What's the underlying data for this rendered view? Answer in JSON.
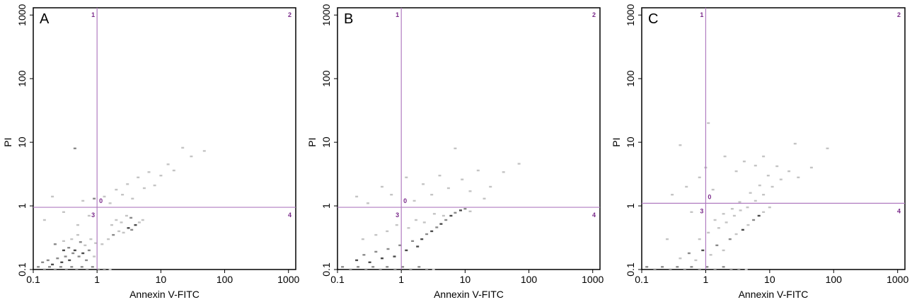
{
  "chart_data": [
    {
      "type": "scatter",
      "panel_label": "A",
      "xlabel": "Annexin V-FITC",
      "ylabel": "PI",
      "xscale": "log",
      "yscale": "log",
      "xlim": [
        0.1,
        1300
      ],
      "ylim": [
        0.1,
        1300
      ],
      "xticks": [
        {
          "value": 0.1,
          "label": "0.1"
        },
        {
          "value": 1,
          "label": "1"
        },
        {
          "value": 10,
          "label": "10"
        },
        {
          "value": 100,
          "label": "100"
        },
        {
          "value": 1000,
          "label": "1000"
        }
      ],
      "yticks": [
        {
          "value": 0.1,
          "label": "0.1"
        },
        {
          "value": 1,
          "label": "1"
        },
        {
          "value": 10,
          "label": "10"
        },
        {
          "value": 100,
          "label": "100"
        },
        {
          "value": 1000,
          "label": "1000"
        }
      ],
      "gate": {
        "x": 1.0,
        "y": 0.95
      },
      "quadrant_labels": [
        "1",
        "2",
        "3",
        "4"
      ],
      "gate_marker": "0",
      "gate_color": "#b07cc0",
      "label_color": "#7a2a8a",
      "point_colors": [
        "#4a4a4a",
        "#8a8a8a",
        "#c4c4c4"
      ],
      "grid": false,
      "legend": "none",
      "points": [
        [
          0.12,
          0.11,
          1
        ],
        [
          0.15,
          0.1,
          1
        ],
        [
          0.18,
          0.11,
          1
        ],
        [
          0.22,
          0.1,
          1
        ],
        [
          0.27,
          0.11,
          1
        ],
        [
          0.33,
          0.1,
          1
        ],
        [
          0.4,
          0.11,
          1
        ],
        [
          0.48,
          0.1,
          1
        ],
        [
          0.58,
          0.11,
          1
        ],
        [
          0.7,
          0.1,
          1
        ],
        [
          0.85,
          0.11,
          1
        ],
        [
          1.05,
          0.1,
          1
        ],
        [
          1.3,
          0.1,
          1
        ],
        [
          1.6,
          0.1,
          2
        ],
        [
          0.14,
          0.13,
          1
        ],
        [
          0.17,
          0.14,
          1
        ],
        [
          0.2,
          0.12,
          0
        ],
        [
          0.24,
          0.15,
          1
        ],
        [
          0.28,
          0.13,
          0
        ],
        [
          0.32,
          0.16,
          1
        ],
        [
          0.37,
          0.14,
          0
        ],
        [
          0.42,
          0.18,
          1
        ],
        [
          0.3,
          0.2,
          0
        ],
        [
          0.36,
          0.22,
          1
        ],
        [
          0.45,
          0.2,
          0
        ],
        [
          0.52,
          0.16,
          1
        ],
        [
          0.6,
          0.18,
          0
        ],
        [
          0.68,
          0.14,
          1
        ],
        [
          0.75,
          0.2,
          1
        ],
        [
          0.9,
          0.16,
          2
        ],
        [
          0.22,
          0.25,
          1
        ],
        [
          0.3,
          0.28,
          2
        ],
        [
          0.4,
          0.3,
          2
        ],
        [
          0.55,
          0.27,
          1
        ],
        [
          0.65,
          0.24,
          2
        ],
        [
          0.8,
          0.3,
          2
        ],
        [
          0.95,
          0.26,
          2
        ],
        [
          0.5,
          0.35,
          2
        ],
        [
          1.2,
          0.25,
          2
        ],
        [
          1.5,
          0.3,
          2
        ],
        [
          1.8,
          0.35,
          1
        ],
        [
          2.2,
          0.4,
          2
        ],
        [
          2.6,
          0.38,
          2
        ],
        [
          3.1,
          0.45,
          0
        ],
        [
          3.5,
          0.42,
          1
        ],
        [
          4.0,
          0.5,
          0
        ],
        [
          4.6,
          0.55,
          2
        ],
        [
          5.2,
          0.6,
          2
        ],
        [
          1.7,
          0.5,
          2
        ],
        [
          2.0,
          0.6,
          2
        ],
        [
          2.4,
          0.55,
          2
        ],
        [
          2.9,
          0.7,
          2
        ],
        [
          3.4,
          0.65,
          1
        ],
        [
          0.15,
          0.6,
          2
        ],
        [
          0.2,
          1.4,
          2
        ],
        [
          0.3,
          0.8,
          2
        ],
        [
          0.45,
          8.0,
          1
        ],
        [
          0.5,
          0.5,
          2
        ],
        [
          0.6,
          1.2,
          2
        ],
        [
          0.75,
          0.7,
          2
        ],
        [
          0.9,
          1.3,
          1
        ],
        [
          1.3,
          1.4,
          2
        ],
        [
          1.6,
          1.1,
          2
        ],
        [
          2.0,
          1.8,
          2
        ],
        [
          2.5,
          1.5,
          2
        ],
        [
          3.0,
          2.2,
          2
        ],
        [
          3.6,
          1.3,
          2
        ],
        [
          4.4,
          2.8,
          2
        ],
        [
          5.5,
          1.9,
          2
        ],
        [
          6.5,
          3.4,
          2
        ],
        [
          8.0,
          2.1,
          2
        ],
        [
          10.0,
          3.0,
          2
        ],
        [
          13.0,
          4.5,
          2
        ],
        [
          16.0,
          3.6,
          2
        ],
        [
          22.0,
          8.2,
          2
        ],
        [
          30.0,
          6.0,
          2
        ],
        [
          48.0,
          7.3,
          2
        ]
      ]
    },
    {
      "type": "scatter",
      "panel_label": "B",
      "xlabel": "Annexin V-FITC",
      "ylabel": "PI",
      "xscale": "log",
      "yscale": "log",
      "xlim": [
        0.1,
        1300
      ],
      "ylim": [
        0.1,
        1300
      ],
      "xticks": [
        {
          "value": 0.1,
          "label": "0.1"
        },
        {
          "value": 1,
          "label": "1"
        },
        {
          "value": 10,
          "label": "10"
        },
        {
          "value": 100,
          "label": "100"
        },
        {
          "value": 1000,
          "label": "1000"
        }
      ],
      "yticks": [
        {
          "value": 0.1,
          "label": "0.1"
        },
        {
          "value": 1,
          "label": "1"
        },
        {
          "value": 10,
          "label": "10"
        },
        {
          "value": 100,
          "label": "100"
        },
        {
          "value": 1000,
          "label": "1000"
        }
      ],
      "gate": {
        "x": 1.0,
        "y": 0.95
      },
      "quadrant_labels": [
        "1",
        "2",
        "3",
        "4"
      ],
      "gate_marker": "0",
      "gate_color": "#b07cc0",
      "label_color": "#7a2a8a",
      "point_colors": [
        "#4a4a4a",
        "#8a8a8a",
        "#c4c4c4"
      ],
      "grid": false,
      "legend": "none",
      "points": [
        [
          0.12,
          0.11,
          1
        ],
        [
          0.16,
          0.1,
          1
        ],
        [
          0.21,
          0.11,
          1
        ],
        [
          0.28,
          0.1,
          1
        ],
        [
          0.36,
          0.11,
          1
        ],
        [
          0.47,
          0.1,
          1
        ],
        [
          0.6,
          0.11,
          1
        ],
        [
          0.8,
          0.1,
          1
        ],
        [
          1.05,
          0.11,
          1
        ],
        [
          1.4,
          0.1,
          1
        ],
        [
          1.9,
          0.11,
          1
        ],
        [
          2.5,
          0.1,
          1
        ],
        [
          3.2,
          0.1,
          2
        ],
        [
          0.2,
          0.14,
          0
        ],
        [
          0.26,
          0.17,
          1
        ],
        [
          0.32,
          0.13,
          0
        ],
        [
          0.4,
          0.19,
          1
        ],
        [
          0.5,
          0.15,
          0
        ],
        [
          0.62,
          0.21,
          1
        ],
        [
          0.78,
          0.16,
          0
        ],
        [
          0.95,
          0.24,
          1
        ],
        [
          1.2,
          0.2,
          0
        ],
        [
          1.5,
          0.28,
          1
        ],
        [
          1.8,
          0.23,
          0
        ],
        [
          2.1,
          0.3,
          0
        ],
        [
          2.5,
          0.36,
          1
        ],
        [
          3.0,
          0.4,
          0
        ],
        [
          3.6,
          0.46,
          1
        ],
        [
          4.2,
          0.52,
          0
        ],
        [
          5.0,
          0.6,
          1
        ],
        [
          6.0,
          0.7,
          0
        ],
        [
          7.0,
          0.78,
          1
        ],
        [
          8.5,
          0.85,
          0
        ],
        [
          10.0,
          0.9,
          1
        ],
        [
          12.0,
          0.82,
          2
        ],
        [
          0.25,
          0.3,
          2
        ],
        [
          0.4,
          0.35,
          2
        ],
        [
          0.6,
          0.4,
          2
        ],
        [
          0.85,
          0.5,
          2
        ],
        [
          1.3,
          0.45,
          2
        ],
        [
          1.7,
          0.6,
          2
        ],
        [
          2.3,
          0.55,
          2
        ],
        [
          3.3,
          0.75,
          2
        ],
        [
          4.6,
          0.7,
          2
        ],
        [
          0.2,
          1.4,
          2
        ],
        [
          0.3,
          1.1,
          2
        ],
        [
          0.5,
          2.0,
          2
        ],
        [
          0.7,
          1.5,
          2
        ],
        [
          1.2,
          2.8,
          2
        ],
        [
          1.6,
          1.2,
          2
        ],
        [
          2.2,
          2.2,
          2
        ],
        [
          3.0,
          1.5,
          2
        ],
        [
          4.0,
          3.0,
          2
        ],
        [
          5.5,
          1.9,
          2
        ],
        [
          7.0,
          8.0,
          2
        ],
        [
          9.0,
          2.6,
          2
        ],
        [
          12.0,
          1.7,
          2
        ],
        [
          16.0,
          3.6,
          2
        ],
        [
          20.0,
          1.3,
          2
        ],
        [
          25.0,
          2.0,
          2
        ],
        [
          40.0,
          3.4,
          2
        ],
        [
          70.0,
          4.6,
          2
        ]
      ]
    },
    {
      "type": "scatter",
      "panel_label": "C",
      "xlabel": "Annexin V-FITC",
      "ylabel": "PI",
      "xscale": "log",
      "yscale": "log",
      "xlim": [
        0.1,
        1300
      ],
      "ylim": [
        0.1,
        1300
      ],
      "xticks": [
        {
          "value": 0.1,
          "label": "0.1"
        },
        {
          "value": 1,
          "label": "1"
        },
        {
          "value": 10,
          "label": "10"
        },
        {
          "value": 100,
          "label": "100"
        },
        {
          "value": 1000,
          "label": "1000"
        }
      ],
      "yticks": [
        {
          "value": 0.1,
          "label": "0.1"
        },
        {
          "value": 1,
          "label": "1"
        },
        {
          "value": 10,
          "label": "10"
        },
        {
          "value": 100,
          "label": "100"
        },
        {
          "value": 1000,
          "label": "1000"
        }
      ],
      "gate": {
        "x": 1.0,
        "y": 1.1
      },
      "quadrant_labels": [
        "1",
        "2",
        "3",
        "4"
      ],
      "gate_marker": "0",
      "gate_color": "#b07cc0",
      "label_color": "#7a2a8a",
      "point_colors": [
        "#4a4a4a",
        "#8a8a8a",
        "#c4c4c4"
      ],
      "grid": false,
      "legend": "none",
      "points": [
        [
          0.12,
          0.11,
          1
        ],
        [
          0.16,
          0.1,
          1
        ],
        [
          0.21,
          0.11,
          1
        ],
        [
          0.28,
          0.1,
          1
        ],
        [
          0.36,
          0.11,
          1
        ],
        [
          0.47,
          0.1,
          1
        ],
        [
          0.6,
          0.11,
          1
        ],
        [
          0.8,
          0.1,
          1
        ],
        [
          1.05,
          0.11,
          1
        ],
        [
          1.4,
          0.1,
          1
        ],
        [
          1.9,
          0.11,
          1
        ],
        [
          2.5,
          0.1,
          1
        ],
        [
          3.3,
          0.1,
          1
        ],
        [
          4.3,
          0.1,
          2
        ],
        [
          0.4,
          0.15,
          2
        ],
        [
          0.55,
          0.18,
          1
        ],
        [
          0.7,
          0.14,
          2
        ],
        [
          0.9,
          0.2,
          0
        ],
        [
          1.2,
          0.17,
          2
        ],
        [
          1.5,
          0.24,
          1
        ],
        [
          1.9,
          0.2,
          2
        ],
        [
          2.4,
          0.3,
          1
        ],
        [
          3.0,
          0.36,
          2
        ],
        [
          3.8,
          0.42,
          0
        ],
        [
          4.6,
          0.5,
          2
        ],
        [
          5.6,
          0.6,
          1
        ],
        [
          6.8,
          0.7,
          0
        ],
        [
          8.0,
          0.8,
          2
        ],
        [
          10.0,
          0.95,
          2
        ],
        [
          0.8,
          0.3,
          2
        ],
        [
          1.1,
          0.38,
          2
        ],
        [
          1.6,
          0.45,
          2
        ],
        [
          2.1,
          0.55,
          2
        ],
        [
          2.8,
          0.7,
          2
        ],
        [
          3.5,
          0.85,
          2
        ],
        [
          4.5,
          0.95,
          2
        ],
        [
          6.0,
          1.2,
          2
        ],
        [
          8.0,
          1.5,
          2
        ],
        [
          11.0,
          2.0,
          2
        ],
        [
          15.0,
          2.6,
          2
        ],
        [
          20.0,
          3.5,
          2
        ],
        [
          28.0,
          2.8,
          2
        ],
        [
          1.4,
          0.6,
          2
        ],
        [
          1.9,
          0.75,
          2
        ],
        [
          2.6,
          0.9,
          2
        ],
        [
          3.4,
          1.15,
          2
        ],
        [
          5.0,
          1.6,
          2
        ],
        [
          7.0,
          2.1,
          2
        ],
        [
          9.5,
          3.0,
          2
        ],
        [
          13.0,
          4.2,
          2
        ],
        [
          0.25,
          0.3,
          2
        ],
        [
          0.3,
          1.5,
          2
        ],
        [
          0.5,
          2.0,
          2
        ],
        [
          0.6,
          0.8,
          2
        ],
        [
          0.8,
          2.8,
          2
        ],
        [
          1.0,
          4.0,
          2
        ],
        [
          1.1,
          20.0,
          2
        ],
        [
          1.3,
          1.8,
          2
        ],
        [
          2.0,
          6.0,
          2
        ],
        [
          3.0,
          3.5,
          2
        ],
        [
          4.0,
          5.0,
          2
        ],
        [
          6.0,
          4.3,
          2
        ],
        [
          8.0,
          6.0,
          2
        ],
        [
          0.4,
          9.0,
          2
        ],
        [
          25.0,
          9.5,
          2
        ],
        [
          45.0,
          4.0,
          2
        ],
        [
          80.0,
          8.0,
          2
        ]
      ]
    }
  ]
}
